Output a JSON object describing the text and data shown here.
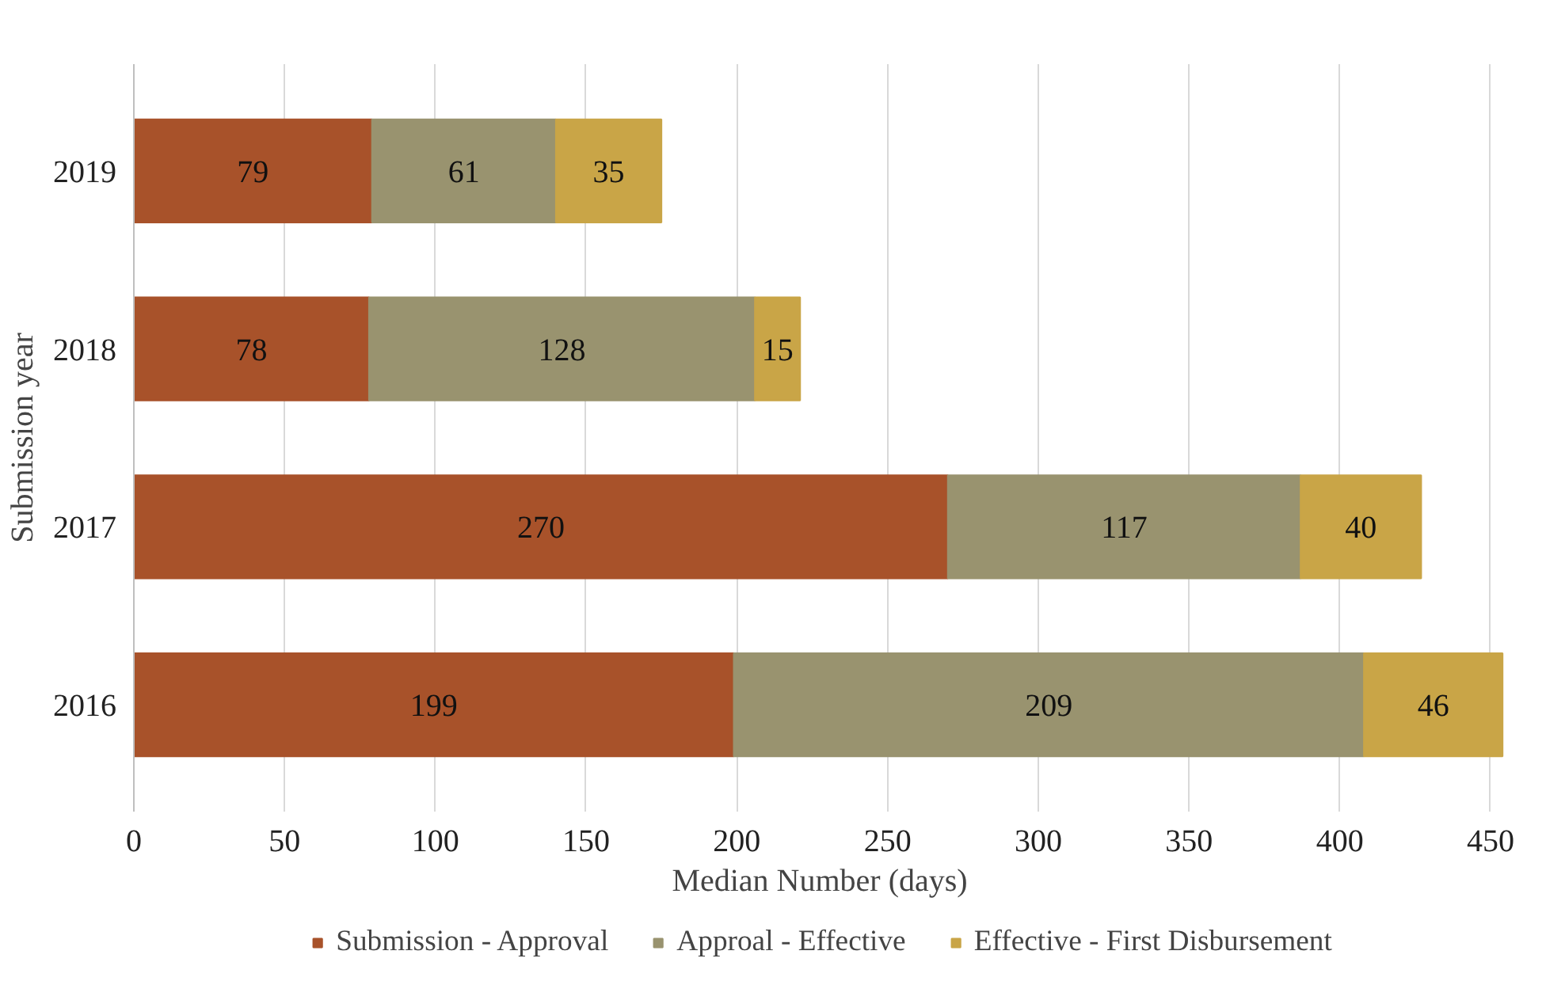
{
  "chart_data": {
    "type": "bar",
    "orientation": "horizontal",
    "stacked": true,
    "xlabel": "Median Number (days)",
    "ylabel": "Submission year",
    "categories": [
      "2019",
      "2018",
      "2017",
      "2016"
    ],
    "series": [
      {
        "name": "Submission - Approval",
        "color": "#a8522a",
        "values": [
          79,
          78,
          270,
          199
        ]
      },
      {
        "name": "Approal - Effective",
        "color": "#99936f",
        "values": [
          61,
          128,
          117,
          209
        ]
      },
      {
        "name": "Effective - First Disbursement",
        "color": "#c9a547",
        "values": [
          35,
          15,
          40,
          46
        ]
      }
    ],
    "xlim": [
      0,
      455
    ],
    "xticks": [
      0,
      50,
      100,
      150,
      200,
      250,
      300,
      350,
      400,
      450
    ],
    "grid": "x",
    "legend": "bottom",
    "data_labels": true
  }
}
